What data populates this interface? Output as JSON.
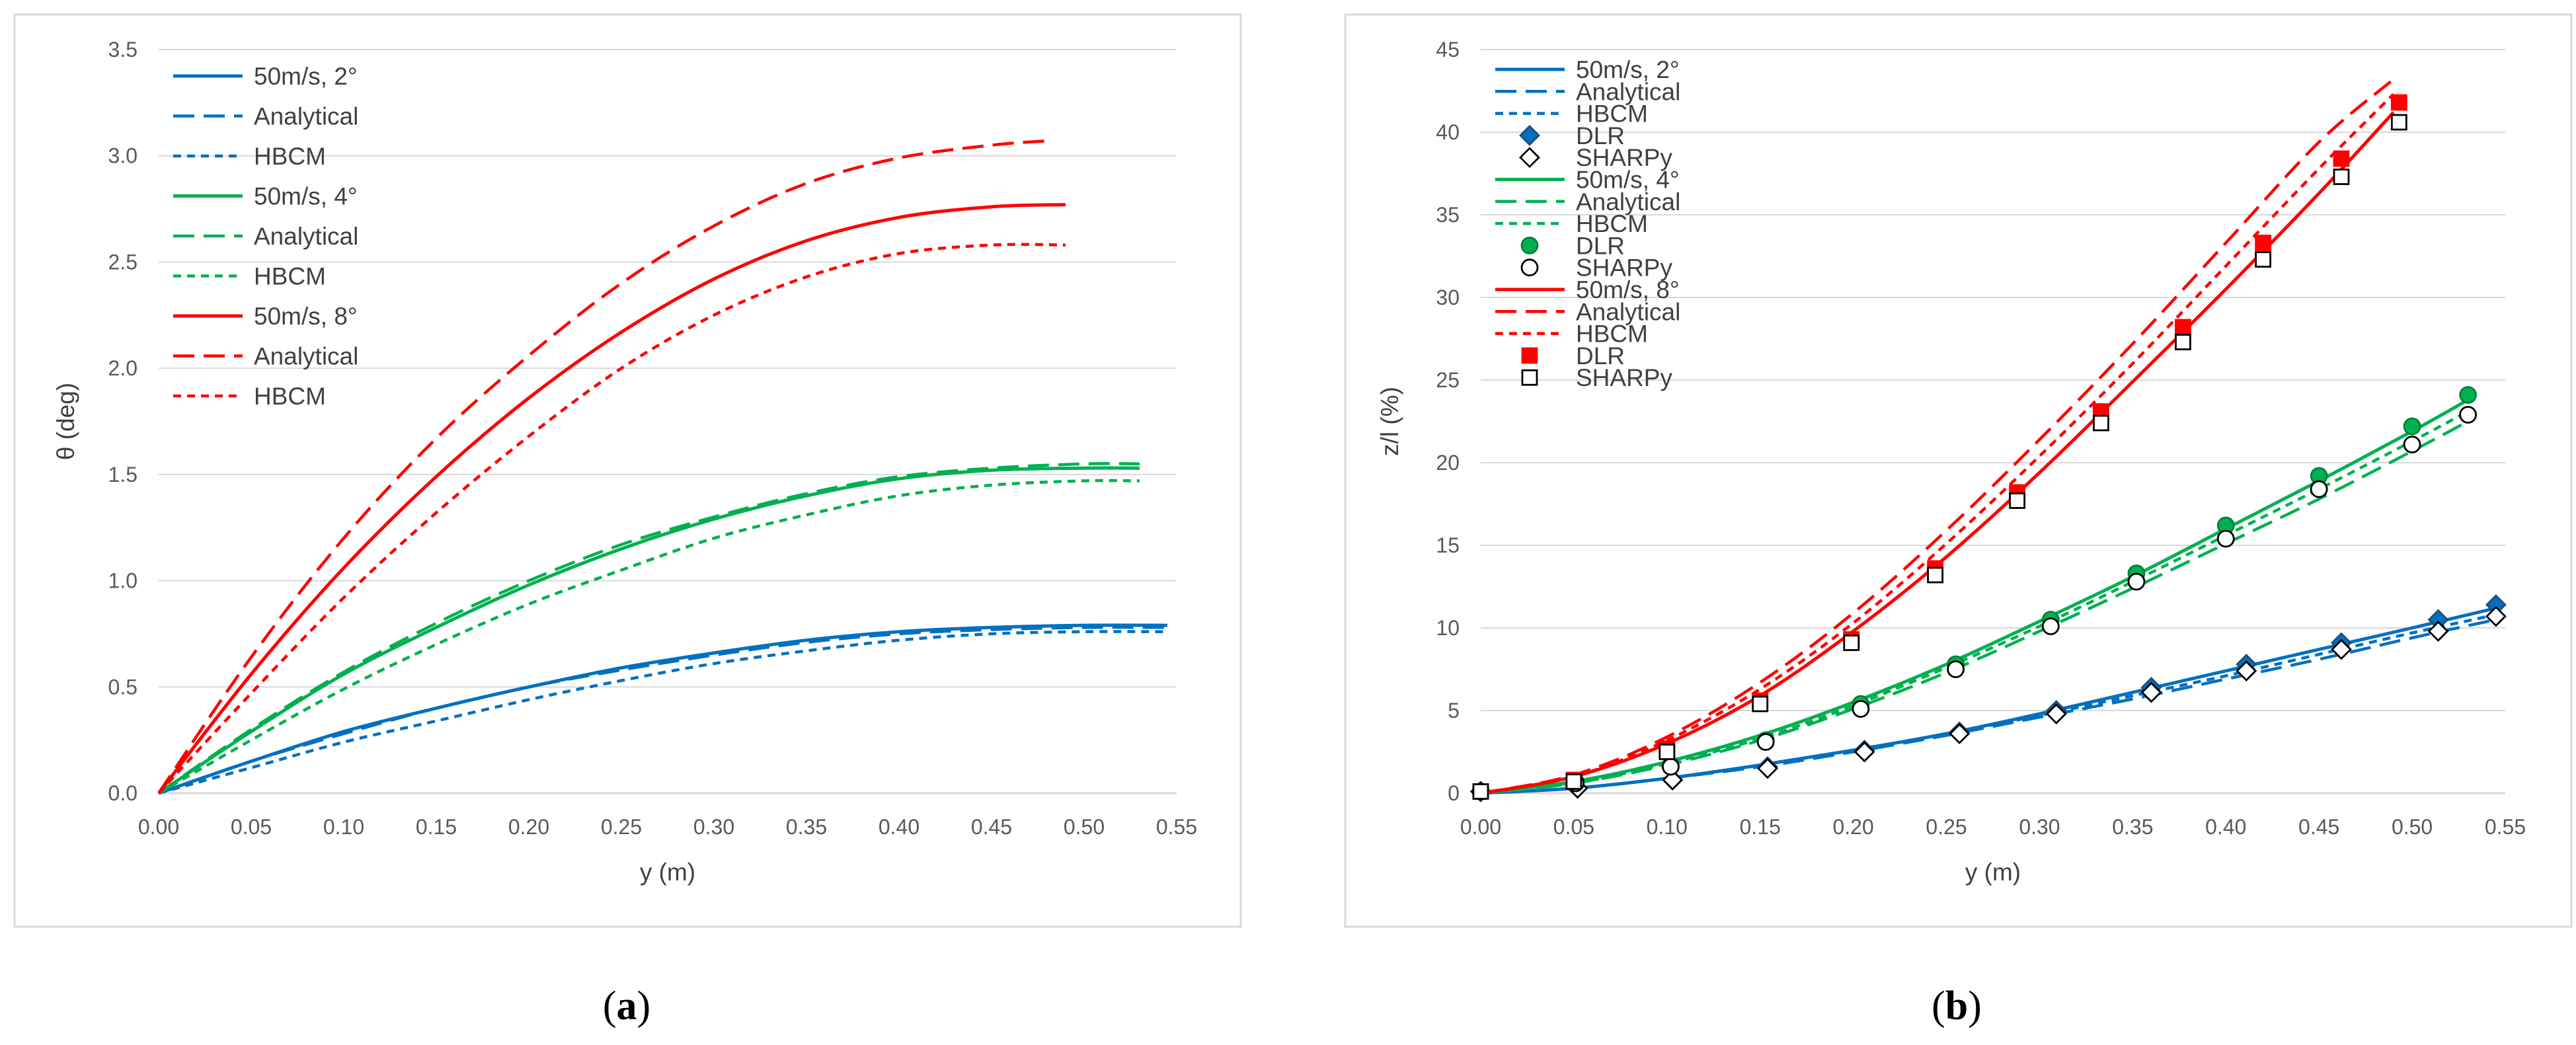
{
  "colors": {
    "blue": "#0070c0",
    "green": "#00b050",
    "red": "#ff0000",
    "grid": "#d9d9d9",
    "frame": "#d9d9d9"
  },
  "panels": [
    {
      "label": "(a)",
      "label_prefix": "(",
      "label_letter": "a",
      "label_suffix": ")"
    },
    {
      "label": "(b)",
      "label_prefix": "(",
      "label_letter": "b",
      "label_suffix": ")"
    }
  ],
  "chart_data": [
    {
      "type": "line",
      "panel": "a",
      "xlabel": "y (m)",
      "ylabel": "θ (deg)",
      "xlim": [
        0,
        0.55
      ],
      "ylim": [
        0,
        3.5
      ],
      "xticks": [
        0,
        0.05,
        0.1,
        0.15,
        0.2,
        0.25,
        0.3,
        0.35,
        0.4,
        0.45,
        0.5,
        0.55
      ],
      "yticks": [
        0,
        0.5,
        1.0,
        1.5,
        2.0,
        2.5,
        3.0,
        3.5
      ],
      "xtick_labels": [
        "0.00",
        "0.05",
        "0.10",
        "0.15",
        "0.20",
        "0.25",
        "0.30",
        "0.35",
        "0.40",
        "0.45",
        "0.50",
        "0.55"
      ],
      "ytick_labels": [
        "0.0",
        "0.5",
        "1.0",
        "1.5",
        "2.0",
        "2.5",
        "3.0",
        "3.5"
      ],
      "legend_position": "top-left",
      "grid": true,
      "series": [
        {
          "name": "50m/s, 2°",
          "color": "blue",
          "style": "solid",
          "x": [
            0,
            0.05,
            0.1,
            0.15,
            0.2,
            0.25,
            0.3,
            0.35,
            0.4,
            0.45,
            0.5,
            0.545
          ],
          "y": [
            0,
            0.15,
            0.29,
            0.4,
            0.5,
            0.59,
            0.66,
            0.72,
            0.76,
            0.78,
            0.79,
            0.79
          ]
        },
        {
          "name": "Analytical",
          "color": "blue",
          "style": "dash",
          "x": [
            0,
            0.05,
            0.1,
            0.15,
            0.2,
            0.25,
            0.3,
            0.35,
            0.4,
            0.45,
            0.5,
            0.545
          ],
          "y": [
            0,
            0.15,
            0.28,
            0.4,
            0.5,
            0.58,
            0.65,
            0.71,
            0.75,
            0.77,
            0.78,
            0.78
          ]
        },
        {
          "name": "HBCM",
          "color": "blue",
          "style": "dot",
          "x": [
            0,
            0.05,
            0.1,
            0.15,
            0.2,
            0.25,
            0.3,
            0.35,
            0.4,
            0.45,
            0.5,
            0.545
          ],
          "y": [
            0,
            0.12,
            0.24,
            0.34,
            0.44,
            0.53,
            0.61,
            0.67,
            0.72,
            0.75,
            0.76,
            0.76
          ]
        },
        {
          "name": "50m/s, 4°",
          "color": "green",
          "style": "solid",
          "x": [
            0,
            0.05,
            0.1,
            0.15,
            0.2,
            0.25,
            0.3,
            0.35,
            0.4,
            0.45,
            0.5,
            0.53
          ],
          "y": [
            0,
            0.29,
            0.56,
            0.78,
            0.98,
            1.15,
            1.29,
            1.4,
            1.48,
            1.52,
            1.53,
            1.53
          ]
        },
        {
          "name": "Analytical",
          "color": "green",
          "style": "dash",
          "x": [
            0,
            0.05,
            0.1,
            0.15,
            0.2,
            0.25,
            0.3,
            0.35,
            0.4,
            0.45,
            0.5,
            0.53
          ],
          "y": [
            0,
            0.3,
            0.57,
            0.8,
            1.0,
            1.17,
            1.3,
            1.41,
            1.49,
            1.53,
            1.55,
            1.55
          ]
        },
        {
          "name": "HBCM",
          "color": "green",
          "style": "dot",
          "x": [
            0,
            0.05,
            0.1,
            0.15,
            0.2,
            0.25,
            0.3,
            0.35,
            0.4,
            0.45,
            0.5,
            0.53
          ],
          "y": [
            0,
            0.25,
            0.49,
            0.7,
            0.89,
            1.05,
            1.2,
            1.31,
            1.4,
            1.45,
            1.47,
            1.47
          ]
        },
        {
          "name": "50m/s, 8°",
          "color": "red",
          "style": "solid",
          "x": [
            0,
            0.05,
            0.1,
            0.15,
            0.2,
            0.25,
            0.3,
            0.35,
            0.4,
            0.45,
            0.49
          ],
          "y": [
            0,
            0.56,
            1.06,
            1.49,
            1.86,
            2.17,
            2.42,
            2.6,
            2.71,
            2.76,
            2.77
          ]
        },
        {
          "name": "Analytical",
          "color": "red",
          "style": "dash",
          "x": [
            0,
            0.05,
            0.1,
            0.15,
            0.2,
            0.25,
            0.3,
            0.35,
            0.4,
            0.45,
            0.48
          ],
          "y": [
            0,
            0.64,
            1.2,
            1.67,
            2.06,
            2.4,
            2.67,
            2.87,
            2.99,
            3.05,
            3.07
          ]
        },
        {
          "name": "HBCM",
          "color": "red",
          "style": "dot",
          "x": [
            0,
            0.05,
            0.1,
            0.15,
            0.2,
            0.25,
            0.3,
            0.35,
            0.4,
            0.45,
            0.49
          ],
          "y": [
            0,
            0.47,
            0.92,
            1.32,
            1.68,
            2.0,
            2.25,
            2.43,
            2.54,
            2.58,
            2.58
          ]
        }
      ]
    },
    {
      "type": "line",
      "panel": "b",
      "xlabel": "y (m)",
      "ylabel": "z/l (%)",
      "xlim": [
        0,
        0.55
      ],
      "ylim": [
        0,
        45
      ],
      "xticks": [
        0,
        0.05,
        0.1,
        0.15,
        0.2,
        0.25,
        0.3,
        0.35,
        0.4,
        0.45,
        0.5,
        0.55
      ],
      "yticks": [
        0,
        5,
        10,
        15,
        20,
        25,
        30,
        35,
        40,
        45
      ],
      "xtick_labels": [
        "0.00",
        "0.05",
        "0.10",
        "0.15",
        "0.20",
        "0.25",
        "0.30",
        "0.35",
        "0.40",
        "0.45",
        "0.50",
        "0.55"
      ],
      "ytick_labels": [
        "0",
        "5",
        "10",
        "15",
        "20",
        "25",
        "30",
        "35",
        "40",
        "45"
      ],
      "legend_position": "top-left",
      "grid": true,
      "series": [
        {
          "name": "50m/s, 2°",
          "color": "blue",
          "style": "solid",
          "x": [
            0,
            0.05,
            0.1,
            0.15,
            0.2,
            0.25,
            0.3,
            0.35,
            0.4,
            0.45,
            0.5,
            0.545
          ],
          "y": [
            0,
            0.3,
            0.9,
            1.7,
            2.6,
            3.6,
            4.8,
            6.1,
            7.4,
            8.7,
            10.0,
            11.2
          ]
        },
        {
          "name": "Analytical",
          "color": "blue",
          "style": "dash",
          "x": [
            0,
            0.05,
            0.1,
            0.15,
            0.2,
            0.25,
            0.3,
            0.35,
            0.4,
            0.45,
            0.5,
            0.545
          ],
          "y": [
            0,
            0.3,
            0.9,
            1.6,
            2.5,
            3.5,
            4.6,
            5.7,
            6.9,
            8.1,
            9.4,
            10.5
          ]
        },
        {
          "name": "HBCM",
          "color": "blue",
          "style": "dot",
          "x": [
            0,
            0.05,
            0.1,
            0.15,
            0.2,
            0.25,
            0.3,
            0.35,
            0.4,
            0.45,
            0.5,
            0.545
          ],
          "y": [
            0,
            0.3,
            0.9,
            1.7,
            2.6,
            3.6,
            4.7,
            5.9,
            7.1,
            8.4,
            9.7,
            10.8
          ]
        },
        {
          "name": "DLR",
          "color": "blue",
          "style": "marker",
          "marker": "diamond-filled",
          "x": [
            0,
            0.052,
            0.103,
            0.154,
            0.206,
            0.257,
            0.309,
            0.36,
            0.411,
            0.462,
            0.514,
            0.545
          ],
          "y": [
            0.1,
            0.3,
            0.8,
            1.6,
            2.6,
            3.7,
            5.0,
            6.4,
            7.8,
            9.1,
            10.5,
            11.4
          ]
        },
        {
          "name": "SHARPy",
          "color": "black",
          "style": "marker",
          "marker": "diamond-open",
          "x": [
            0,
            0.052,
            0.103,
            0.154,
            0.206,
            0.257,
            0.309,
            0.36,
            0.411,
            0.462,
            0.514,
            0.545
          ],
          "y": [
            0.1,
            0.3,
            0.8,
            1.5,
            2.5,
            3.6,
            4.8,
            6.1,
            7.4,
            8.7,
            9.8,
            10.7
          ]
        },
        {
          "name": "50m/s, 4°",
          "color": "green",
          "style": "solid",
          "x": [
            0,
            0.05,
            0.1,
            0.15,
            0.2,
            0.25,
            0.3,
            0.35,
            0.4,
            0.45,
            0.5,
            0.53
          ],
          "y": [
            0,
            0.7,
            1.9,
            3.5,
            5.5,
            7.8,
            10.4,
            13.1,
            16.0,
            18.9,
            21.9,
            23.8
          ]
        },
        {
          "name": "Analytical",
          "color": "green",
          "style": "dash",
          "x": [
            0,
            0.05,
            0.1,
            0.15,
            0.2,
            0.25,
            0.3,
            0.35,
            0.4,
            0.45,
            0.5,
            0.53
          ],
          "y": [
            0,
            0.6,
            1.7,
            3.2,
            5.1,
            7.3,
            9.8,
            12.4,
            15.1,
            17.8,
            20.7,
            22.5
          ]
        },
        {
          "name": "HBCM",
          "color": "green",
          "style": "dot",
          "x": [
            0,
            0.05,
            0.1,
            0.15,
            0.2,
            0.25,
            0.3,
            0.35,
            0.4,
            0.45,
            0.5,
            0.53
          ],
          "y": [
            0,
            0.6,
            1.8,
            3.3,
            5.3,
            7.6,
            10.1,
            12.8,
            15.6,
            18.4,
            21.3,
            23.1
          ]
        },
        {
          "name": "DLR",
          "color": "green",
          "style": "marker",
          "marker": "circle-filled",
          "x": [
            0,
            0.051,
            0.102,
            0.153,
            0.204,
            0.255,
            0.306,
            0.352,
            0.4,
            0.45,
            0.5,
            0.53
          ],
          "y": [
            0.1,
            0.7,
            1.7,
            3.2,
            5.4,
            7.8,
            10.5,
            13.3,
            16.2,
            19.2,
            22.2,
            24.1
          ]
        },
        {
          "name": "SHARPy",
          "color": "black",
          "style": "marker",
          "marker": "circle-open",
          "x": [
            0,
            0.051,
            0.102,
            0.153,
            0.204,
            0.255,
            0.306,
            0.352,
            0.4,
            0.45,
            0.5,
            0.53
          ],
          "y": [
            0.1,
            0.6,
            1.6,
            3.1,
            5.1,
            7.5,
            10.1,
            12.8,
            15.4,
            18.4,
            21.1,
            22.9
          ]
        },
        {
          "name": "50m/s, 8°",
          "color": "red",
          "style": "solid",
          "x": [
            0,
            0.05,
            0.1,
            0.15,
            0.2,
            0.25,
            0.3,
            0.35,
            0.4,
            0.45,
            0.49
          ],
          "y": [
            0,
            1.0,
            3.0,
            5.9,
            9.8,
            14.3,
            19.4,
            24.9,
            30.5,
            36.3,
            41.2
          ]
        },
        {
          "name": "Analytical",
          "color": "red",
          "style": "dash",
          "x": [
            0,
            0.05,
            0.1,
            0.15,
            0.2,
            0.25,
            0.3,
            0.35,
            0.4,
            0.45,
            0.49
          ],
          "y": [
            0,
            1.1,
            3.4,
            6.7,
            10.9,
            15.9,
            21.4,
            27.2,
            33.3,
            39.4,
            43.2
          ]
        },
        {
          "name": "HBCM",
          "color": "red",
          "style": "dot",
          "x": [
            0,
            0.05,
            0.1,
            0.15,
            0.2,
            0.25,
            0.3,
            0.35,
            0.4,
            0.45,
            0.49
          ],
          "y": [
            0,
            1.0,
            3.2,
            6.3,
            10.3,
            15.1,
            20.4,
            26.0,
            31.9,
            37.8,
            42.3
          ]
        },
        {
          "name": "DLR",
          "color": "red",
          "style": "marker",
          "marker": "square-filled",
          "x": [
            0,
            0.05,
            0.1,
            0.15,
            0.199,
            0.244,
            0.288,
            0.333,
            0.377,
            0.42,
            0.462,
            0.493
          ],
          "y": [
            0.1,
            0.8,
            2.7,
            5.6,
            9.3,
            13.6,
            18.2,
            23.1,
            28.2,
            33.3,
            38.4,
            41.8
          ]
        },
        {
          "name": "SHARPy",
          "color": "black",
          "style": "marker",
          "marker": "square-open",
          "x": [
            0,
            0.05,
            0.1,
            0.15,
            0.199,
            0.244,
            0.288,
            0.333,
            0.377,
            0.42,
            0.462,
            0.493
          ],
          "y": [
            0.1,
            0.7,
            2.5,
            5.4,
            9.1,
            13.2,
            17.7,
            22.4,
            27.3,
            32.3,
            37.3,
            40.6
          ]
        }
      ]
    }
  ]
}
